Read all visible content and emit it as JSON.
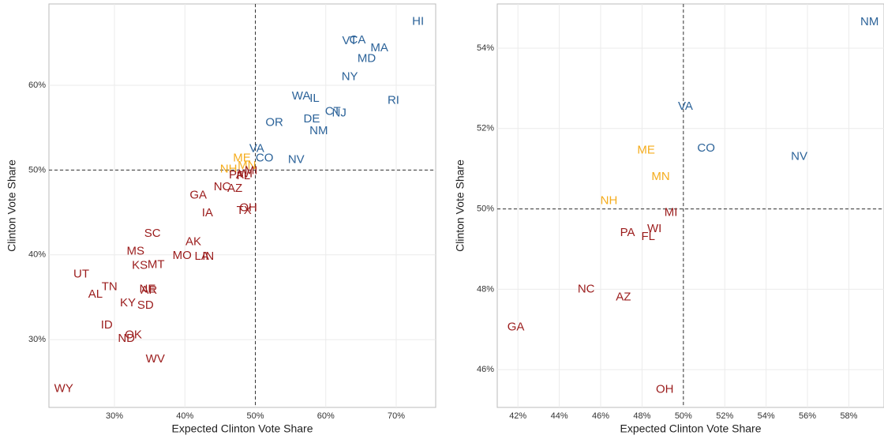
{
  "chart_data": [
    {
      "type": "scatter",
      "x_label": "Expected Clinton Vote Share",
      "y_label": "Clinton Vote Share",
      "xlim": [
        20.7,
        75.6
      ],
      "ylim": [
        22.0,
        69.6
      ],
      "xticks": [
        {
          "value": 30,
          "label": "30%"
        },
        {
          "value": 40,
          "label": "40%"
        },
        {
          "value": 50,
          "label": "50%"
        },
        {
          "value": 60,
          "label": "60%"
        },
        {
          "value": 70,
          "label": "70%"
        }
      ],
      "yticks": [
        {
          "value": 30,
          "label": "30%"
        },
        {
          "value": 40,
          "label": "40%"
        },
        {
          "value": 50,
          "label": "50%"
        },
        {
          "value": 60,
          "label": "60%"
        }
      ],
      "grid": true,
      "hline": 50,
      "vline": 50,
      "labels": [
        "HI",
        "VT",
        "CA",
        "MA",
        "MD",
        "NY",
        "RI",
        "WA",
        "IL",
        "CT",
        "NJ",
        "OR",
        "DE",
        "NM",
        "VA",
        "CO",
        "NV",
        "ME",
        "MN",
        "NH",
        "PA",
        "FL",
        "WI",
        "MI",
        "NC",
        "AZ",
        "GA",
        "IA",
        "OH",
        "TX",
        "SC",
        "AK",
        "MS",
        "MO",
        "LA",
        "IN",
        "KS",
        "MT",
        "UT",
        "TN",
        "AL",
        "NE",
        "AR",
        "KY",
        "SD",
        "ID",
        "OK",
        "ND",
        "WV",
        "WY"
      ],
      "x": [
        73.1,
        63.4,
        64.5,
        67.6,
        65.8,
        63.4,
        69.6,
        56.5,
        58.4,
        61.0,
        61.9,
        52.7,
        58.0,
        59.0,
        50.2,
        51.3,
        55.8,
        48.1,
        48.8,
        46.2,
        47.3,
        48.3,
        48.6,
        49.4,
        45.3,
        47.1,
        41.9,
        43.2,
        49.0,
        48.4,
        35.4,
        41.2,
        33.0,
        39.6,
        42.4,
        43.3,
        33.6,
        35.9,
        25.3,
        29.3,
        27.3,
        34.7,
        34.9,
        31.9,
        34.4,
        28.9,
        32.7,
        31.7,
        35.8,
        22.8
      ],
      "values": [
        67.5,
        65.2,
        65.3,
        64.4,
        63.1,
        61.0,
        58.2,
        58.7,
        58.4,
        56.9,
        56.7,
        55.6,
        56.0,
        54.6,
        52.5,
        51.4,
        51.2,
        51.4,
        50.5,
        50.1,
        49.4,
        49.3,
        49.5,
        49.9,
        48.0,
        47.8,
        47.0,
        44.9,
        45.5,
        45.2,
        42.5,
        41.5,
        40.4,
        39.9,
        39.8,
        39.8,
        38.7,
        38.8,
        37.7,
        36.2,
        35.3,
        35.9,
        35.8,
        34.3,
        34.0,
        31.7,
        30.5,
        30.1,
        27.7,
        24.2
      ],
      "colors": [
        "#2c6399",
        "#2c6399",
        "#2c6399",
        "#2c6399",
        "#2c6399",
        "#2c6399",
        "#2c6399",
        "#2c6399",
        "#2c6399",
        "#2c6399",
        "#2c6399",
        "#2c6399",
        "#2c6399",
        "#2c6399",
        "#2c6399",
        "#2c6399",
        "#2c6399",
        "#f5ac1c",
        "#f5ac1c",
        "#f5ac1c",
        "#9b1c1c",
        "#9b1c1c",
        "#9b1c1c",
        "#9b1c1c",
        "#9b1c1c",
        "#9b1c1c",
        "#9b1c1c",
        "#9b1c1c",
        "#9b1c1c",
        "#9b1c1c",
        "#9b1c1c",
        "#9b1c1c",
        "#9b1c1c",
        "#9b1c1c",
        "#9b1c1c",
        "#9b1c1c",
        "#9b1c1c",
        "#9b1c1c",
        "#9b1c1c",
        "#9b1c1c",
        "#9b1c1c",
        "#9b1c1c",
        "#9b1c1c",
        "#9b1c1c",
        "#9b1c1c",
        "#9b1c1c",
        "#9b1c1c",
        "#9b1c1c",
        "#9b1c1c",
        "#9b1c1c"
      ]
    },
    {
      "type": "scatter",
      "x_label": "Expected Clinton Vote Share",
      "y_label": "Clinton Vote Share",
      "xlim": [
        41.0,
        59.7
      ],
      "ylim": [
        45.06,
        55.1
      ],
      "xticks": [
        {
          "value": 42,
          "label": "42%"
        },
        {
          "value": 44,
          "label": "44%"
        },
        {
          "value": 46,
          "label": "46%"
        },
        {
          "value": 48,
          "label": "48%"
        },
        {
          "value": 50,
          "label": "50%"
        },
        {
          "value": 52,
          "label": "52%"
        },
        {
          "value": 54,
          "label": "54%"
        },
        {
          "value": 56,
          "label": "56%"
        },
        {
          "value": 58,
          "label": "58%"
        }
      ],
      "yticks": [
        {
          "value": 46,
          "label": "46%"
        },
        {
          "value": 48,
          "label": "48%"
        },
        {
          "value": 50,
          "label": "50%"
        },
        {
          "value": 52,
          "label": "52%"
        },
        {
          "value": 54,
          "label": "54%"
        }
      ],
      "grid": true,
      "hline": 50,
      "vline": 50,
      "labels": [
        "NM",
        "VA",
        "CO",
        "NV",
        "ME",
        "MN",
        "NH",
        "MI",
        "WI",
        "PA",
        "FL",
        "NC",
        "AZ",
        "GA",
        "OH"
      ],
      "x": [
        59.0,
        50.1,
        51.1,
        55.6,
        48.2,
        48.9,
        46.4,
        49.4,
        48.6,
        47.3,
        48.3,
        45.3,
        47.1,
        41.9,
        49.1
      ],
      "values": [
        54.65,
        52.55,
        51.5,
        51.3,
        51.45,
        50.8,
        50.2,
        49.9,
        49.5,
        49.4,
        49.3,
        48.0,
        47.8,
        47.05,
        45.5
      ],
      "colors": [
        "#2c6399",
        "#2c6399",
        "#2c6399",
        "#2c6399",
        "#f5ac1c",
        "#f5ac1c",
        "#f5ac1c",
        "#9b1c1c",
        "#9b1c1c",
        "#9b1c1c",
        "#9b1c1c",
        "#9b1c1c",
        "#9b1c1c",
        "#9b1c1c",
        "#9b1c1c"
      ]
    }
  ]
}
